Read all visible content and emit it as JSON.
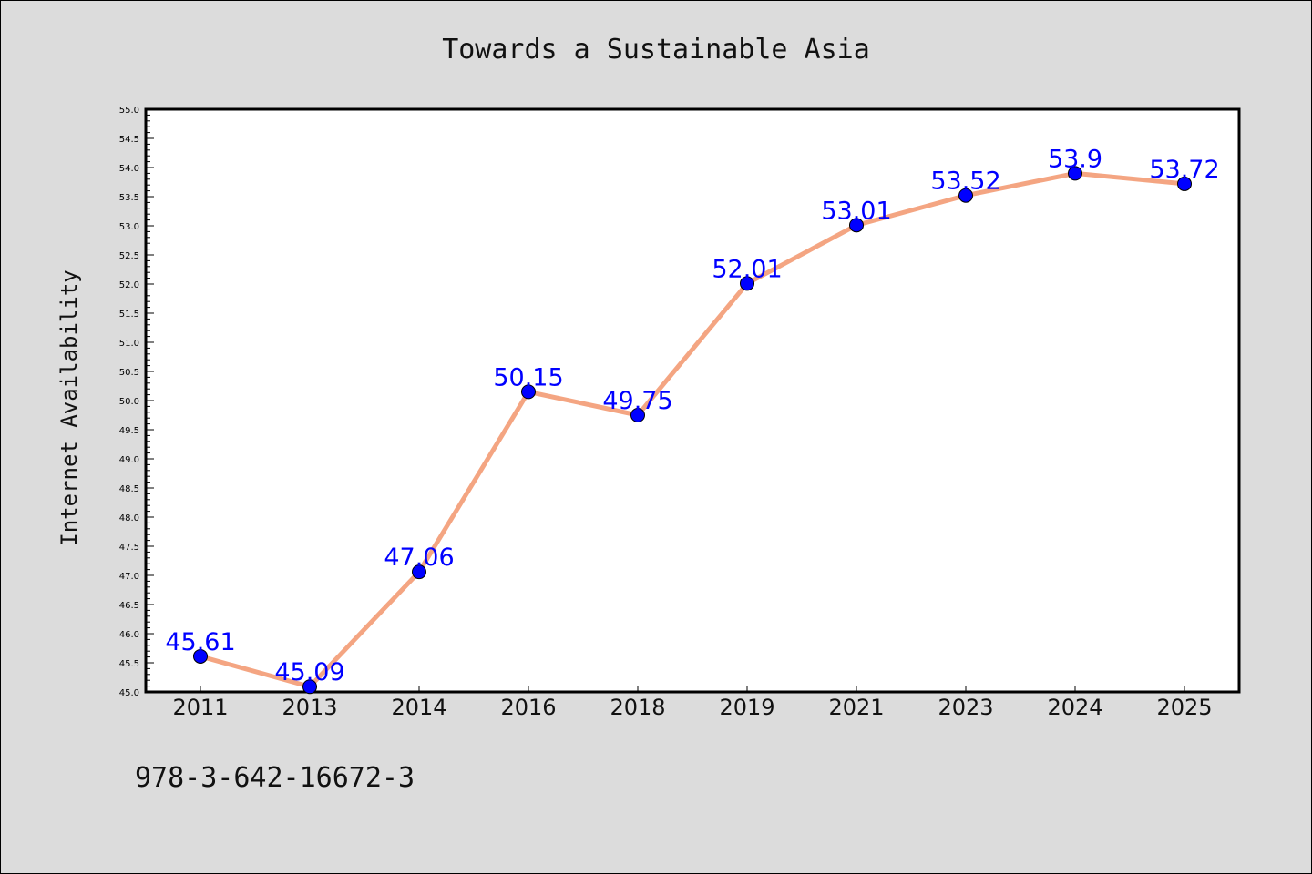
{
  "footer": {
    "isbn": "978-3-642-16672-3"
  },
  "colors": {
    "line": "#f4a582",
    "marker": "#0000ff",
    "label": "#0000ff",
    "background": "#dcdcdc",
    "plot_bg": "#ffffff"
  },
  "chart_data": {
    "type": "line",
    "title": "Towards a Sustainable Asia",
    "xlabel": "",
    "ylabel": "Internet Availability",
    "categories": [
      "2011",
      "2013",
      "2014",
      "2016",
      "2018",
      "2019",
      "2021",
      "2023",
      "2024",
      "2025"
    ],
    "series": [
      {
        "values": [
          45.61,
          45.09,
          47.06,
          50.15,
          49.75,
          52.01,
          53.01,
          53.52,
          53.9,
          53.72
        ]
      }
    ],
    "data_labels": [
      "45.61",
      "45.09",
      "47.06",
      "50.15",
      "49.75",
      "52.01",
      "53.01",
      "53.52",
      "53.9",
      "53.72"
    ],
    "ylim": [
      45.0,
      55.0
    ],
    "yticks": [
      "45.0",
      "45.5",
      "46.0",
      "46.5",
      "47.0",
      "47.5",
      "48.0",
      "48.5",
      "49.0",
      "49.5",
      "50.0",
      "50.5",
      "51.0",
      "51.5",
      "52.0",
      "52.5",
      "53.0",
      "53.5",
      "54.0",
      "54.5",
      "55.0"
    ],
    "grid": false,
    "legend": "none"
  }
}
